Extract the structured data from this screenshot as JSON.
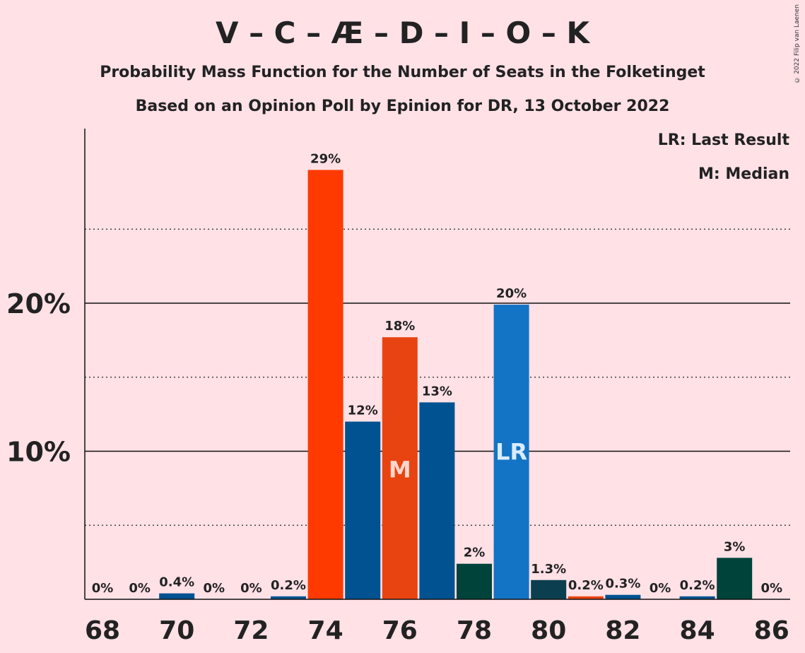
{
  "title": "V – C – Æ – D – I – O – K",
  "subtitle": "Probability Mass Function for the Number of Seats in the Folketinget",
  "subtitle2": "Based on an Opinion Poll by Epinion for DR, 13 October 2022",
  "copyright": "© 2022 Filip van Laenen",
  "legend": {
    "last_result": "LR: Last Result",
    "median": "M: Median"
  },
  "colors": {
    "background": "#ffe1e6",
    "orange_red": "#ff3a00",
    "dark_blue": "#005291",
    "orange": "#e84412",
    "dark_green": "#00433a",
    "blue": "#1373c4",
    "teal_dark": "#0b3f4f"
  },
  "chart_data": {
    "type": "bar",
    "x": [
      68,
      69,
      70,
      71,
      72,
      73,
      74,
      75,
      76,
      77,
      78,
      79,
      80,
      81,
      82,
      83,
      84,
      85,
      86
    ],
    "values": [
      0,
      0,
      0.4,
      0,
      0,
      0.2,
      29,
      12,
      17.7,
      13.3,
      2.4,
      19.9,
      1.3,
      0.2,
      0.3,
      0,
      0.2,
      2.8,
      0
    ],
    "labels": [
      "0%",
      "0%",
      "0.4%",
      "0%",
      "0%",
      "0.2%",
      "29%",
      "12%",
      "18%",
      "13%",
      "2%",
      "20%",
      "1.3%",
      "0.2%",
      "0.3%",
      "0%",
      "0.2%",
      "3%",
      "0%"
    ],
    "bar_colors": [
      "#005291",
      "#005291",
      "#005291",
      "#005291",
      "#005291",
      "#005291",
      "#ff3a00",
      "#005291",
      "#e84412",
      "#005291",
      "#00433a",
      "#1373c4",
      "#0b3f4f",
      "#e84412",
      "#005291",
      "#005291",
      "#005291",
      "#00433a",
      "#005291"
    ],
    "xticks": [
      68,
      70,
      72,
      74,
      76,
      78,
      80,
      82,
      84,
      86
    ],
    "yticks": [
      10,
      20
    ],
    "ytick_labels": [
      "10%",
      "20%"
    ],
    "minor_gridlines": [
      5,
      15,
      25
    ],
    "ylim": [
      0,
      31.6
    ],
    "median": 76,
    "median_label": "M",
    "last_result": 79,
    "last_result_label": "LR"
  }
}
